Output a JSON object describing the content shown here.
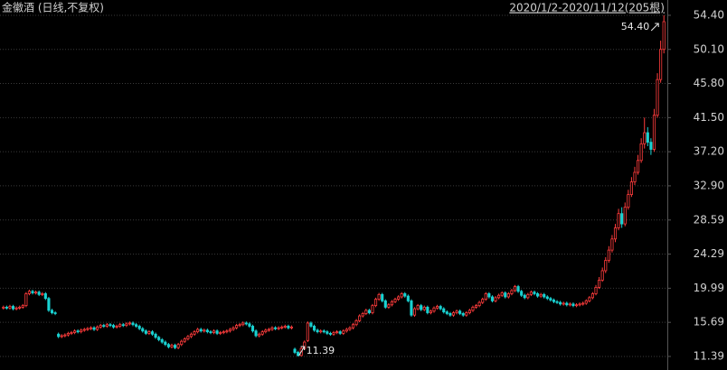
{
  "chart_data": {
    "type": "candlestick",
    "title": "金徽酒 (日线,不复权)",
    "range_label": "2020/1/2-2020/11/12(205根)",
    "up_color": "#ff3c3c",
    "down_color": "#19d2d2",
    "grid": true,
    "ylim": [
      9.68,
      56.33
    ],
    "yticks": [
      11.39,
      15.69,
      19.99,
      24.29,
      28.59,
      {
        "value": 32.9,
        "label": "32.90"
      },
      {
        "value": 37.2,
        "label": "37.20"
      },
      {
        "value": 41.5,
        "label": "41.50"
      },
      {
        "value": 45.8,
        "label": "45.80"
      },
      {
        "value": 50.1,
        "label": "50.10"
      },
      {
        "value": 54.4,
        "label": "54.40"
      }
    ],
    "annotations": [
      {
        "label": "54.40",
        "value": 54.4
      },
      {
        "label": "11.39",
        "value": 11.39
      }
    ],
    "open": [
      17.5,
      17.6,
      17.5,
      17.7,
      17.4,
      17.5,
      17.6,
      17.8,
      19.3,
      19.6,
      19.4,
      19.5,
      19.2,
      19.3,
      18.7,
      17.2,
      16.9,
      14.2,
      13.9,
      14.0,
      14.1,
      14.3,
      14.4,
      14.6,
      14.5,
      14.7,
      14.8,
      14.9,
      15.0,
      14.8,
      15.1,
      15.3,
      15.2,
      15.4,
      15.3,
      15.1,
      15.2,
      15.4,
      15.3,
      15.5,
      15.6,
      15.4,
      15.2,
      14.9,
      14.6,
      14.3,
      14.5,
      14.2,
      13.8,
      13.5,
      13.2,
      12.9,
      12.6,
      12.8,
      12.5,
      12.9,
      13.3,
      13.6,
      13.9,
      14.2,
      14.5,
      14.8,
      14.6,
      14.7,
      14.5,
      14.4,
      14.6,
      14.3,
      14.4,
      14.5,
      14.6,
      14.8,
      15.0,
      15.3,
      15.4,
      15.6,
      15.5,
      15.2,
      14.6,
      14.0,
      14.2,
      14.5,
      14.7,
      14.8,
      15.0,
      14.9,
      15.0,
      15.1,
      15.2,
      15.0,
      12.3,
      11.9,
      11.5,
      12.4,
      13.4,
      15.6,
      15.2,
      14.7,
      14.5,
      14.6,
      14.5,
      14.3,
      14.2,
      14.4,
      14.5,
      14.3,
      14.6,
      14.8,
      15.0,
      15.4,
      15.9,
      16.5,
      16.8,
      17.2,
      16.9,
      17.8,
      18.6,
      19.2,
      18.4,
      17.6,
      17.9,
      18.3,
      18.6,
      18.9,
      19.3,
      19.0,
      18.4,
      16.6,
      17.4,
      17.8,
      17.3,
      17.6,
      16.9,
      17.1,
      17.5,
      17.7,
      17.4,
      17.0,
      16.8,
      16.6,
      16.9,
      17.1,
      16.8,
      16.6,
      16.9,
      17.2,
      17.6,
      17.8,
      18.2,
      18.6,
      19.3,
      18.9,
      18.4,
      18.8,
      19.1,
      19.4,
      18.9,
      19.3,
      19.7,
      20.2,
      19.6,
      19.1,
      18.8,
      19.2,
      19.5,
      19.3,
      19.0,
      19.2,
      18.9,
      18.7,
      18.5,
      18.3,
      18.2,
      18.0,
      18.1,
      17.9,
      18.0,
      17.8,
      17.9,
      18.0,
      18.1,
      18.4,
      18.8,
      19.3,
      20.1,
      21.0,
      22.2,
      23.5,
      24.8,
      26.2,
      27.6,
      29.4,
      28.1,
      30.2,
      31.8,
      33.4,
      34.6,
      36.1,
      38.2,
      39.6,
      38.4,
      37.5,
      41.8,
      46.3,
      50.1
    ],
    "high": [
      17.8,
      17.8,
      17.9,
      17.9,
      17.7,
      17.8,
      18.0,
      19.5,
      19.8,
      19.8,
      19.7,
      19.7,
      19.5,
      19.5,
      18.9,
      17.4,
      17.1,
      14.4,
      14.2,
      14.3,
      14.5,
      14.6,
      14.8,
      14.8,
      14.9,
      15.0,
      15.1,
      15.2,
      15.2,
      15.3,
      15.5,
      15.5,
      15.6,
      15.6,
      15.5,
      15.4,
      15.6,
      15.6,
      15.7,
      15.8,
      15.8,
      15.6,
      15.4,
      15.1,
      14.8,
      14.7,
      14.7,
      14.4,
      14.0,
      13.7,
      13.4,
      13.1,
      13.0,
      13.0,
      13.1,
      13.5,
      13.8,
      14.1,
      14.4,
      14.7,
      15.0,
      15.0,
      14.9,
      14.9,
      14.7,
      14.8,
      14.8,
      14.6,
      14.7,
      14.8,
      15.0,
      15.2,
      15.5,
      15.6,
      15.8,
      15.8,
      15.7,
      15.4,
      14.8,
      14.4,
      14.7,
      14.9,
      15.0,
      15.2,
      15.2,
      15.2,
      15.3,
      15.4,
      15.4,
      15.3,
      12.5,
      12.1,
      12.6,
      13.4,
      15.8,
      15.8,
      15.4,
      14.9,
      14.8,
      14.8,
      14.7,
      14.5,
      14.6,
      14.7,
      14.7,
      14.8,
      15.0,
      15.2,
      15.6,
      16.1,
      16.7,
      17.0,
      17.4,
      17.4,
      18.0,
      18.8,
      19.4,
      19.4,
      18.6,
      18.1,
      18.5,
      18.8,
      19.1,
      19.5,
      19.5,
      19.2,
      18.6,
      17.6,
      18.0,
      18.0,
      17.8,
      17.8,
      17.3,
      17.7,
      17.9,
      17.9,
      17.6,
      17.2,
      17.0,
      17.1,
      17.3,
      17.3,
      17.0,
      17.1,
      17.4,
      17.8,
      18.0,
      18.4,
      18.8,
      19.5,
      19.5,
      19.1,
      19.0,
      19.3,
      19.6,
      19.6,
      19.5,
      19.9,
      20.4,
      20.4,
      19.8,
      19.3,
      19.4,
      19.7,
      19.7,
      19.5,
      19.4,
      19.4,
      19.1,
      18.9,
      18.7,
      18.5,
      18.4,
      18.3,
      18.3,
      18.2,
      18.2,
      18.1,
      18.2,
      18.3,
      18.6,
      19.0,
      19.5,
      20.4,
      21.4,
      22.6,
      23.9,
      25.3,
      26.7,
      28.1,
      30.0,
      30.2,
      30.8,
      32.4,
      34.0,
      35.3,
      36.8,
      38.9,
      41.5,
      40.3,
      38.9,
      42.6,
      47.1,
      51.2,
      54.4
    ],
    "low": [
      17.3,
      17.3,
      17.3,
      17.2,
      17.2,
      17.3,
      17.4,
      17.6,
      19.1,
      19.2,
      19.2,
      19.0,
      19.0,
      18.5,
      17.0,
      16.7,
      16.6,
      13.7,
      13.7,
      13.8,
      13.9,
      14.1,
      14.2,
      14.3,
      14.3,
      14.5,
      14.6,
      14.7,
      14.6,
      14.6,
      14.9,
      15.0,
      15.0,
      15.1,
      14.9,
      14.9,
      15.0,
      15.1,
      15.1,
      15.3,
      15.2,
      15.0,
      14.7,
      14.4,
      14.1,
      14.1,
      14.0,
      13.6,
      13.3,
      13.0,
      12.7,
      12.4,
      12.4,
      12.3,
      12.3,
      12.7,
      13.1,
      13.4,
      13.7,
      14.0,
      14.3,
      14.4,
      14.4,
      14.3,
      14.2,
      14.2,
      14.1,
      14.1,
      14.2,
      14.3,
      14.4,
      14.6,
      14.8,
      15.1,
      15.2,
      15.3,
      15.0,
      14.4,
      13.8,
      13.8,
      14.0,
      14.3,
      14.5,
      14.6,
      14.7,
      14.7,
      14.8,
      14.9,
      14.8,
      14.8,
      11.7,
      11.39,
      11.4,
      12.2,
      13.2,
      15.0,
      14.5,
      14.3,
      14.3,
      14.3,
      14.1,
      14.0,
      14.0,
      14.2,
      14.1,
      14.1,
      14.4,
      14.6,
      14.8,
      15.2,
      15.7,
      16.3,
      16.6,
      16.7,
      16.7,
      17.6,
      18.4,
      18.2,
      17.4,
      17.4,
      17.7,
      18.1,
      18.4,
      18.7,
      18.8,
      18.2,
      16.4,
      16.4,
      17.2,
      17.1,
      17.1,
      16.7,
      16.7,
      16.9,
      17.3,
      17.2,
      16.8,
      16.6,
      16.4,
      16.4,
      16.7,
      16.6,
      16.4,
      16.4,
      16.7,
      17.0,
      17.4,
      17.6,
      18.0,
      18.4,
      18.7,
      18.2,
      18.2,
      18.6,
      18.9,
      18.7,
      18.7,
      19.1,
      19.5,
      19.4,
      18.9,
      18.6,
      18.6,
      19.0,
      19.1,
      18.8,
      18.8,
      18.7,
      18.5,
      18.3,
      18.1,
      18.0,
      17.8,
      17.8,
      17.7,
      17.7,
      17.6,
      17.6,
      17.7,
      17.8,
      17.9,
      18.2,
      18.6,
      19.1,
      19.9,
      20.8,
      21.9,
      23.2,
      24.5,
      25.8,
      27.3,
      27.6,
      27.8,
      29.9,
      31.5,
      33.0,
      34.3,
      35.8,
      37.6,
      37.9,
      36.8,
      37.2,
      41.5,
      45.9,
      49.6
    ],
    "close": [
      17.6,
      17.5,
      17.7,
      17.4,
      17.5,
      17.6,
      17.8,
      19.3,
      19.6,
      19.4,
      19.5,
      19.2,
      19.3,
      18.7,
      17.2,
      16.9,
      16.8,
      13.9,
      14.0,
      14.1,
      14.3,
      14.4,
      14.6,
      14.5,
      14.7,
      14.8,
      14.9,
      15.0,
      14.8,
      15.1,
      15.3,
      15.2,
      15.4,
      15.3,
      15.1,
      15.2,
      15.4,
      15.3,
      15.5,
      15.6,
      15.4,
      15.2,
      14.9,
      14.6,
      14.3,
      14.5,
      14.2,
      13.8,
      13.5,
      13.2,
      12.9,
      12.6,
      12.8,
      12.5,
      12.9,
      13.3,
      13.6,
      13.9,
      14.2,
      14.5,
      14.8,
      14.6,
      14.7,
      14.5,
      14.4,
      14.6,
      14.3,
      14.4,
      14.5,
      14.6,
      14.8,
      15.0,
      15.3,
      15.4,
      15.6,
      15.5,
      15.2,
      14.6,
      14.0,
      14.2,
      14.5,
      14.7,
      14.8,
      15.0,
      14.9,
      15.0,
      15.1,
      15.2,
      15.0,
      15.1,
      11.9,
      11.5,
      12.4,
      13.2,
      15.6,
      15.2,
      14.7,
      14.5,
      14.6,
      14.5,
      14.3,
      14.2,
      14.4,
      14.5,
      14.3,
      14.6,
      14.8,
      15.0,
      15.4,
      15.9,
      16.5,
      16.8,
      17.2,
      16.9,
      17.8,
      18.6,
      19.2,
      18.4,
      17.6,
      17.9,
      18.3,
      18.6,
      18.9,
      19.3,
      19.0,
      18.4,
      16.6,
      17.4,
      17.8,
      17.3,
      17.6,
      16.9,
      17.1,
      17.5,
      17.7,
      17.4,
      17.0,
      16.8,
      16.6,
      16.9,
      17.1,
      16.8,
      16.6,
      16.9,
      17.2,
      17.6,
      17.8,
      18.2,
      18.6,
      19.3,
      18.9,
      18.4,
      18.8,
      19.1,
      19.4,
      18.9,
      19.3,
      19.7,
      20.2,
      19.6,
      19.1,
      18.8,
      19.2,
      19.5,
      19.3,
      19.0,
      19.2,
      18.9,
      18.7,
      18.5,
      18.3,
      18.2,
      18.0,
      18.1,
      17.9,
      18.0,
      17.8,
      17.9,
      18.0,
      18.1,
      18.4,
      18.8,
      19.3,
      20.1,
      21.0,
      22.2,
      23.5,
      24.8,
      26.2,
      27.6,
      29.4,
      28.1,
      30.2,
      31.8,
      33.4,
      34.6,
      36.1,
      38.2,
      39.6,
      38.4,
      37.5,
      41.8,
      46.3,
      50.1,
      53.6
    ]
  }
}
